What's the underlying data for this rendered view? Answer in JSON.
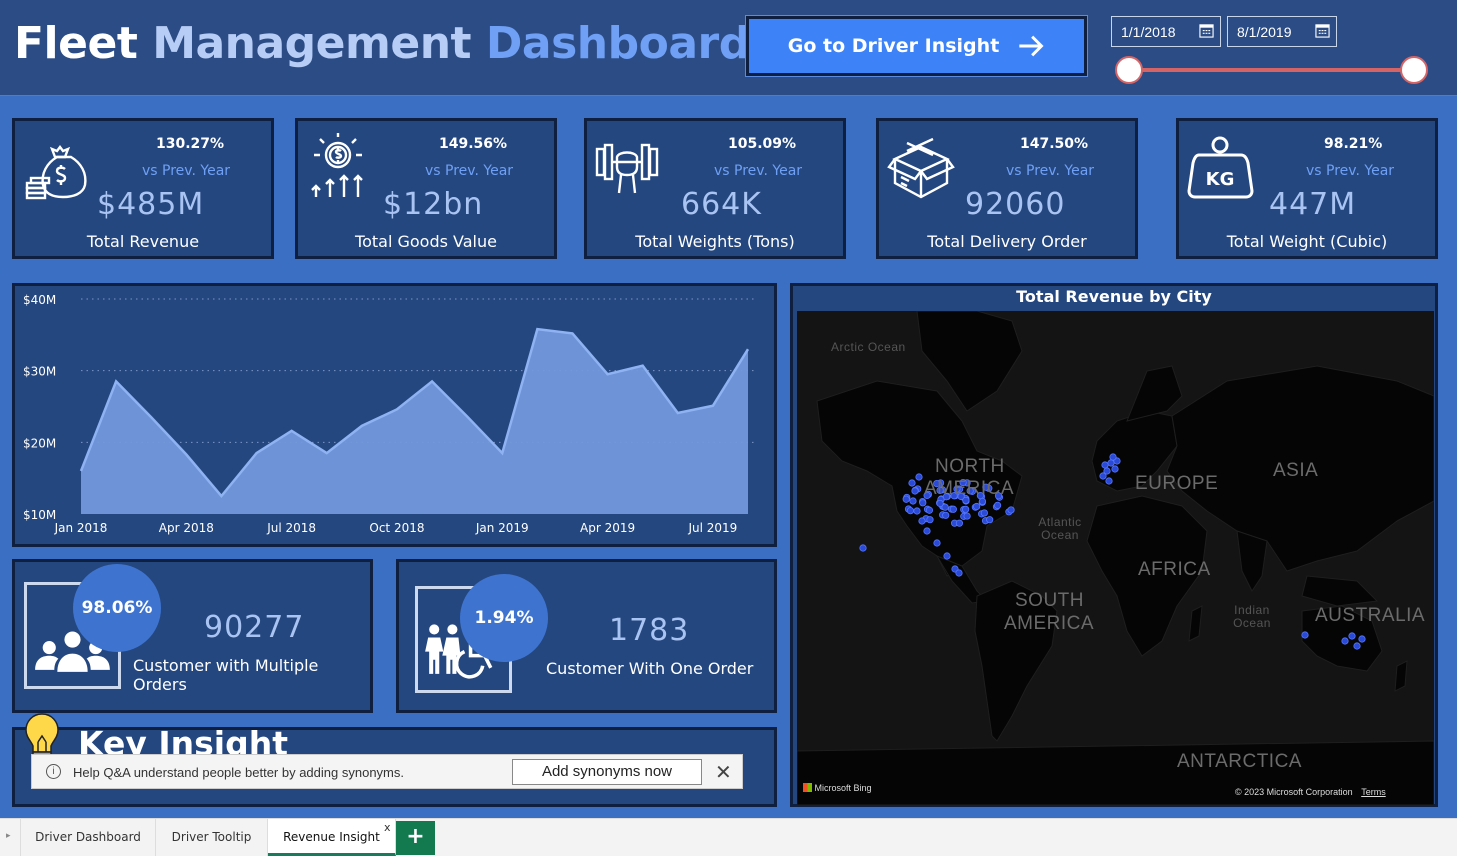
{
  "header": {
    "title_1": "Fleet",
    "title_2": "Management",
    "title_3": "Dashboard",
    "driver_insight_button": "Go to Driver Insight",
    "start_date": "1/1/2018",
    "end_date": "8/1/2019"
  },
  "kpis": [
    {
      "pct": "130.27%",
      "vs": "vs Prev. Year",
      "value": "$485M",
      "label": "Total Revenue",
      "icon": "money-bag-icon"
    },
    {
      "pct": "149.56%",
      "vs": "vs Prev. Year",
      "value": "$12bn",
      "label": "Total Goods Value",
      "icon": "dollar-growth-icon"
    },
    {
      "pct": "105.09%",
      "vs": "vs Prev. Year",
      "value": "664K",
      "label": "Total Weights (Tons)",
      "icon": "dumbbell-icon"
    },
    {
      "pct": "147.50%",
      "vs": "vs Prev. Year",
      "value": "92060",
      "label": "Total Delivery Order",
      "icon": "box-icon"
    },
    {
      "pct": "98.21%",
      "vs": "vs Prev. Year",
      "value": "447M",
      "label": "Total Weight (Cubic)",
      "icon": "kg-weight-icon"
    }
  ],
  "chart_data": {
    "type": "area",
    "title": "",
    "xlabel": "",
    "ylabel": "",
    "y_ticks": [
      "$10M",
      "$20M",
      "$30M",
      "$40M"
    ],
    "ylim": [
      10,
      40
    ],
    "x_ticks": [
      "Jan 2018",
      "Apr 2018",
      "Jul 2018",
      "Oct 2018",
      "Jan 2019",
      "Apr 2019",
      "Jul 2019"
    ],
    "categories": [
      "Jan 2018",
      "Feb 2018",
      "Mar 2018",
      "Apr 2018",
      "May 2018",
      "Jun 2018",
      "Jul 2018",
      "Aug 2018",
      "Sep 2018",
      "Oct 2018",
      "Nov 2018",
      "Dec 2018",
      "Jan 2019",
      "Feb 2019",
      "Mar 2019",
      "Apr 2019",
      "May 2019",
      "Jun 2019",
      "Jul 2019",
      "Aug 2019"
    ],
    "values": [
      16,
      28.5,
      23.5,
      18.3,
      12.5,
      18.5,
      21.6,
      18.5,
      22.3,
      24.6,
      28.5,
      23.6,
      18.5,
      35.8,
      35.2,
      29.5,
      30.7,
      24.1,
      25.1,
      33
    ]
  },
  "customers": {
    "multi": {
      "pct": "98.06%",
      "value": "90277",
      "label": "Customer with Multiple Orders"
    },
    "single": {
      "pct": "1.94%",
      "value": "1783",
      "label": "Customer With One Order"
    }
  },
  "insight": {
    "title": "Key Insight"
  },
  "toast": {
    "message": "Help Q&A understand people better by adding synonyms.",
    "button": "Add synonyms now",
    "info": "i",
    "close": "✕"
  },
  "map": {
    "title": "Total Revenue by City",
    "labels": {
      "arctic": "Arctic Ocean",
      "north_america_1": "NORTH",
      "north_america_2": "AMERICA",
      "europe": "EUROPE",
      "asia": "ASIA",
      "atlantic": "Atlantic Ocean",
      "africa": "AFRICA",
      "south_america_1": "SOUTH",
      "south_america_2": "AMERICA",
      "indian": "Indian Ocean",
      "australia": "AUSTRALIA",
      "antarctica": "ANTARCTICA"
    },
    "bing": "Microsoft Bing",
    "copyright": "© 2023 Microsoft Corporation",
    "terms": "Terms"
  },
  "tabs": {
    "t1": "Driver Dashboard",
    "t2": "Driver Tooltip",
    "t3": "Revenue Insight",
    "add": "+",
    "close": "x"
  },
  "colors": {
    "header_bg": "#2b4c85",
    "panel_bg": "#24477f",
    "accent": "#3d82f7",
    "page_bg": "#3a6fc4"
  }
}
